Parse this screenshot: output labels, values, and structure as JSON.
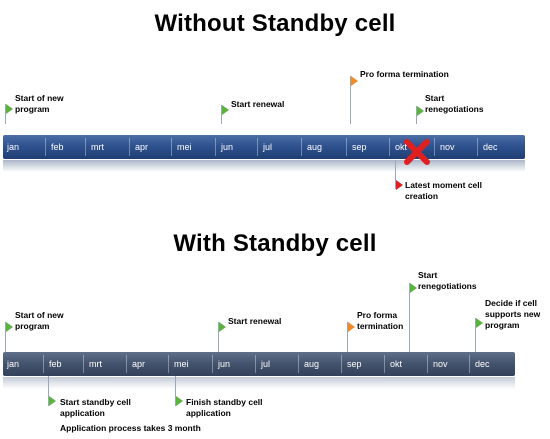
{
  "top": {
    "title": "Without Standby cell",
    "months": [
      "jan",
      "feb",
      "mrt",
      "apr",
      "mei",
      "jun",
      "jul",
      "aug",
      "sep",
      "okt",
      "nov",
      "dec"
    ],
    "events": {
      "start_program": {
        "line1": "Start of new",
        "line2": "program"
      },
      "start_renewal": {
        "line1": "Start renewal"
      },
      "pro_forma": {
        "line1": "Pro forma termination"
      },
      "renegotiations": {
        "line1": "Start",
        "line2": "renegotiations"
      },
      "latest_moment": {
        "line1": "Latest moment cell",
        "line2": "creation"
      }
    },
    "colors": {
      "bar": "#2f5290",
      "flag_green": "#5ab33b",
      "flag_orange": "#f08c28",
      "flag_red": "#e02020",
      "x_mark": "#e02020"
    }
  },
  "bottom": {
    "title": "With Standby cell",
    "months": [
      "jan",
      "feb",
      "mrt",
      "apr",
      "mei",
      "jun",
      "jul",
      "aug",
      "sep",
      "okt",
      "nov",
      "dec"
    ],
    "events": {
      "start_program": {
        "line1": "Start of new",
        "line2": "program"
      },
      "start_renewal": {
        "line1": "Start renewal"
      },
      "pro_forma": {
        "line1": "Pro forma",
        "line2": "termination"
      },
      "renegotiations": {
        "line1": "Start",
        "line2": "renegotiations"
      },
      "decide": {
        "line1": "Decide if cell",
        "line2": "supports new",
        "line3": "program"
      },
      "start_standby": {
        "line1": "Start standby cell",
        "line2": "application"
      },
      "finish_standby": {
        "line1": "Finish standby cell",
        "line2": "application"
      }
    },
    "note": "Application process takes 3 month",
    "colors": {
      "bar": "#44536d"
    }
  }
}
